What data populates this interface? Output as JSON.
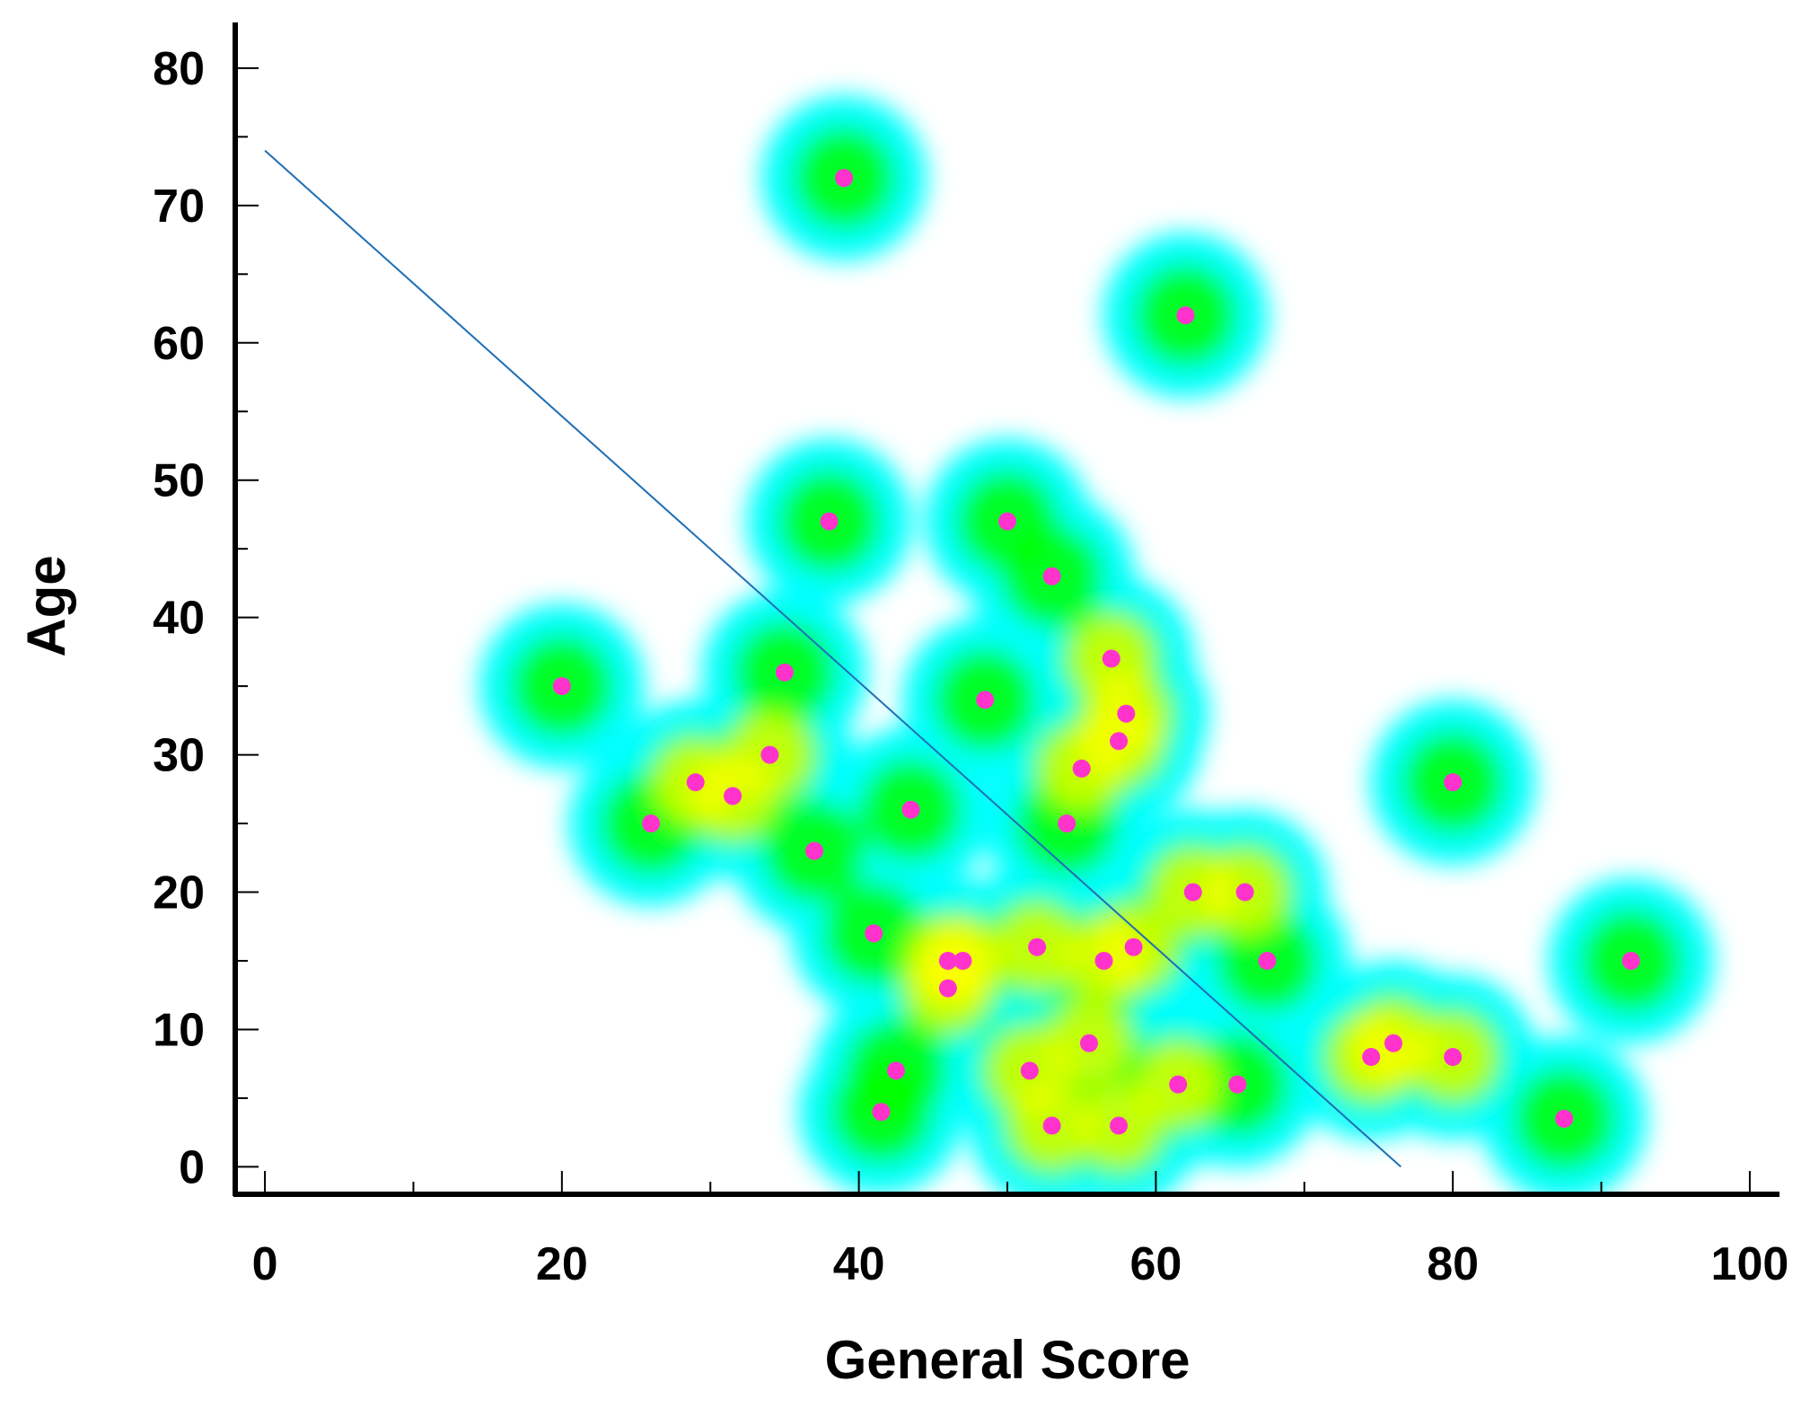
{
  "chart_data": {
    "type": "scatter",
    "title": "",
    "xlabel": "General Score",
    "ylabel": "Age",
    "xlim": [
      -2,
      102
    ],
    "ylim": [
      -2,
      83
    ],
    "x_ticks": [
      0,
      20,
      40,
      60,
      80,
      100
    ],
    "x_tick_labels": [
      "0",
      "20",
      "40",
      "60",
      "80",
      "100"
    ],
    "x_minor_step": 10,
    "y_ticks": [
      0,
      10,
      20,
      30,
      40,
      50,
      60,
      70,
      80
    ],
    "y_tick_labels": [
      "0",
      "10",
      "20",
      "30",
      "40",
      "50",
      "60",
      "70",
      "80"
    ],
    "y_minor_step": 5,
    "grid": false,
    "density_overlay": true,
    "colors": {
      "points": "#ff33cc",
      "trend_line": "#1f6fb5",
      "density_low": "#00ffff",
      "density_mid": "#00ff00",
      "density_high": "#ffff00",
      "density_peak": "#ff0000"
    },
    "series": [
      {
        "points": [
          [
            39,
            72
          ],
          [
            62,
            62
          ],
          [
            38,
            47
          ],
          [
            50,
            47
          ],
          [
            53,
            43
          ],
          [
            20,
            35
          ],
          [
            35,
            36
          ],
          [
            48.5,
            34
          ],
          [
            57,
            37
          ],
          [
            58,
            33
          ],
          [
            57.5,
            31
          ],
          [
            55,
            29
          ],
          [
            34,
            30
          ],
          [
            29,
            28
          ],
          [
            31.5,
            27
          ],
          [
            26,
            25
          ],
          [
            43.5,
            26
          ],
          [
            54,
            25
          ],
          [
            37,
            23
          ],
          [
            80,
            28
          ],
          [
            62.5,
            20
          ],
          [
            66,
            20
          ],
          [
            41,
            17
          ],
          [
            46,
            15
          ],
          [
            47,
            15
          ],
          [
            46,
            13
          ],
          [
            52,
            16
          ],
          [
            56.5,
            15
          ],
          [
            58.5,
            16
          ],
          [
            67.5,
            15
          ],
          [
            92,
            15
          ],
          [
            55.5,
            9
          ],
          [
            74.5,
            8
          ],
          [
            76,
            9
          ],
          [
            80,
            8
          ],
          [
            42.5,
            7
          ],
          [
            51.5,
            7
          ],
          [
            61.5,
            6
          ],
          [
            65.5,
            6
          ],
          [
            41.5,
            4
          ],
          [
            53,
            3
          ],
          [
            57.5,
            3
          ],
          [
            87.5,
            3.5
          ]
        ]
      }
    ],
    "trend_line": {
      "x": [
        0,
        76.5
      ],
      "y": [
        74,
        0
      ]
    }
  }
}
